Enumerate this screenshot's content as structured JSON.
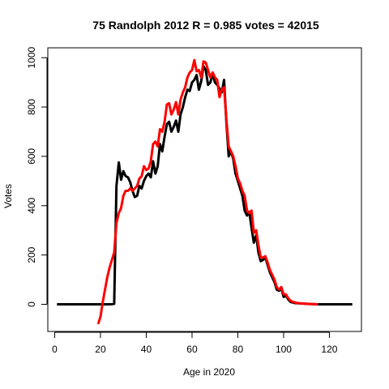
{
  "chart_data": {
    "type": "line",
    "title": "75 Randolph 2012 R = 0.985 votes = 42015",
    "xlabel": "Age in 2020",
    "ylabel": "Votes",
    "xlim": [
      -3,
      134
    ],
    "ylim": [
      -110,
      1040
    ],
    "xticks": [
      0,
      20,
      40,
      60,
      80,
      100,
      120
    ],
    "yticks": [
      0,
      200,
      400,
      600,
      800,
      1000
    ],
    "grid": false,
    "legend": "none",
    "series": [
      {
        "color": "#000000",
        "points": [
          [
            1,
            0
          ],
          [
            5,
            0
          ],
          [
            10,
            0
          ],
          [
            15,
            0
          ],
          [
            20,
            0
          ],
          [
            24,
            0
          ],
          [
            26,
            2
          ],
          [
            27,
            480
          ],
          [
            28,
            575
          ],
          [
            29,
            505
          ],
          [
            30,
            540
          ],
          [
            31,
            520
          ],
          [
            32,
            515
          ],
          [
            33,
            495
          ],
          [
            34,
            460
          ],
          [
            35,
            435
          ],
          [
            36,
            440
          ],
          [
            37,
            480
          ],
          [
            38,
            470
          ],
          [
            39,
            500
          ],
          [
            40,
            520
          ],
          [
            41,
            530
          ],
          [
            42,
            515
          ],
          [
            43,
            580
          ],
          [
            44,
            530
          ],
          [
            45,
            560
          ],
          [
            46,
            650
          ],
          [
            47,
            620
          ],
          [
            48,
            680
          ],
          [
            49,
            730
          ],
          [
            50,
            740
          ],
          [
            51,
            700
          ],
          [
            52,
            720
          ],
          [
            53,
            745
          ],
          [
            54,
            700
          ],
          [
            55,
            770
          ],
          [
            56,
            800
          ],
          [
            57,
            840
          ],
          [
            58,
            870
          ],
          [
            59,
            865
          ],
          [
            60,
            900
          ],
          [
            61,
            910
          ],
          [
            62,
            930
          ],
          [
            63,
            870
          ],
          [
            64,
            905
          ],
          [
            65,
            965
          ],
          [
            66,
            950
          ],
          [
            67,
            890
          ],
          [
            68,
            900
          ],
          [
            69,
            935
          ],
          [
            70,
            900
          ],
          [
            71,
            890
          ],
          [
            72,
            875
          ],
          [
            73,
            860
          ],
          [
            74,
            910
          ],
          [
            75,
            740
          ],
          [
            76,
            600
          ],
          [
            77,
            620
          ],
          [
            78,
            590
          ],
          [
            79,
            530
          ],
          [
            80,
            500
          ],
          [
            81,
            470
          ],
          [
            82,
            440
          ],
          [
            83,
            380
          ],
          [
            84,
            360
          ],
          [
            85,
            375
          ],
          [
            86,
            310
          ],
          [
            87,
            250
          ],
          [
            88,
            280
          ],
          [
            89,
            210
          ],
          [
            90,
            175
          ],
          [
            91,
            180
          ],
          [
            92,
            190
          ],
          [
            93,
            160
          ],
          [
            94,
            130
          ],
          [
            95,
            110
          ],
          [
            96,
            90
          ],
          [
            97,
            60
          ],
          [
            98,
            55
          ],
          [
            99,
            65
          ],
          [
            100,
            30
          ],
          [
            101,
            35
          ],
          [
            102,
            20
          ],
          [
            103,
            10
          ],
          [
            105,
            5
          ],
          [
            110,
            2
          ],
          [
            115,
            0
          ],
          [
            120,
            0
          ],
          [
            125,
            0
          ],
          [
            130,
            0
          ]
        ]
      },
      {
        "color": "#ff0000",
        "points": [
          [
            19,
            -80
          ],
          [
            20,
            -50
          ],
          [
            21,
            10
          ],
          [
            22,
            60
          ],
          [
            23,
            110
          ],
          [
            24,
            150
          ],
          [
            25,
            180
          ],
          [
            26,
            210
          ],
          [
            27,
            330
          ],
          [
            28,
            370
          ],
          [
            29,
            390
          ],
          [
            30,
            440
          ],
          [
            31,
            460
          ],
          [
            32,
            460
          ],
          [
            33,
            470
          ],
          [
            34,
            460
          ],
          [
            35,
            470
          ],
          [
            36,
            480
          ],
          [
            37,
            510
          ],
          [
            38,
            520
          ],
          [
            39,
            560
          ],
          [
            40,
            545
          ],
          [
            41,
            550
          ],
          [
            42,
            580
          ],
          [
            43,
            650
          ],
          [
            44,
            660
          ],
          [
            45,
            640
          ],
          [
            46,
            710
          ],
          [
            47,
            700
          ],
          [
            48,
            740
          ],
          [
            49,
            810
          ],
          [
            50,
            815
          ],
          [
            51,
            770
          ],
          [
            52,
            790
          ],
          [
            53,
            820
          ],
          [
            54,
            770
          ],
          [
            55,
            830
          ],
          [
            56,
            860
          ],
          [
            57,
            880
          ],
          [
            58,
            920
          ],
          [
            59,
            940
          ],
          [
            60,
            950
          ],
          [
            61,
            990
          ],
          [
            62,
            945
          ],
          [
            63,
            950
          ],
          [
            64,
            920
          ],
          [
            65,
            985
          ],
          [
            66,
            980
          ],
          [
            67,
            950
          ],
          [
            68,
            920
          ],
          [
            69,
            940
          ],
          [
            70,
            920
          ],
          [
            71,
            910
          ],
          [
            72,
            840
          ],
          [
            73,
            870
          ],
          [
            74,
            880
          ],
          [
            75,
            750
          ],
          [
            76,
            640
          ],
          [
            77,
            620
          ],
          [
            78,
            600
          ],
          [
            79,
            560
          ],
          [
            80,
            510
          ],
          [
            81,
            490
          ],
          [
            82,
            460
          ],
          [
            83,
            440
          ],
          [
            84,
            380
          ],
          [
            85,
            370
          ],
          [
            86,
            380
          ],
          [
            87,
            290
          ],
          [
            88,
            300
          ],
          [
            89,
            240
          ],
          [
            90,
            190
          ],
          [
            91,
            190
          ],
          [
            92,
            195
          ],
          [
            93,
            170
          ],
          [
            94,
            140
          ],
          [
            95,
            120
          ],
          [
            96,
            100
          ],
          [
            97,
            70
          ],
          [
            98,
            60
          ],
          [
            99,
            70
          ],
          [
            100,
            40
          ],
          [
            101,
            40
          ],
          [
            102,
            25
          ],
          [
            103,
            15
          ],
          [
            104,
            10
          ],
          [
            106,
            5
          ],
          [
            110,
            2
          ],
          [
            115,
            0
          ]
        ]
      }
    ]
  }
}
